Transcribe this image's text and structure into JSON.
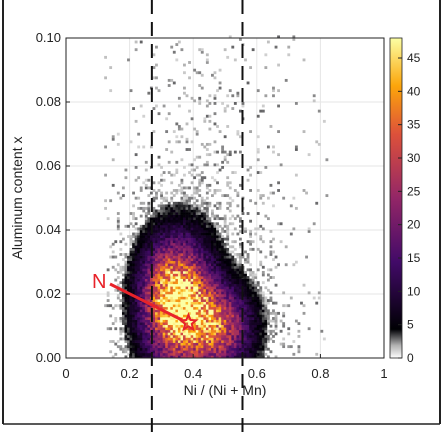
{
  "chart_data": {
    "type": "heatmap",
    "xlabel": "Ni / (Ni + Mn)",
    "ylabel": "Aluminum content x",
    "xlim": [
      0,
      1
    ],
    "ylim": [
      0,
      0.1
    ],
    "x_ticks": [
      0,
      0.2,
      0.4,
      0.6,
      0.8,
      1
    ],
    "x_tick_labels": [
      "0",
      "0.2",
      "0.4",
      "0.6",
      "0.8",
      "1"
    ],
    "y_ticks": [
      0,
      0.02,
      0.04,
      0.06,
      0.08,
      0.1
    ],
    "y_tick_labels": [
      "0.00",
      "0.02",
      "0.04",
      "0.06",
      "0.08",
      "0.10"
    ],
    "colorbar": {
      "min": 0,
      "max": 48,
      "ticks": [
        0,
        5,
        10,
        15,
        20,
        25,
        30,
        35,
        40,
        45
      ],
      "tick_labels": [
        "0",
        "5",
        "10",
        "15",
        "20",
        "25",
        "30",
        "35",
        "40",
        "45"
      ],
      "colormap": "inferno-like (light gray low → black → purple → orange → yellow high)"
    },
    "density_clusters": [
      {
        "center_x": 0.34,
        "center_y": 0.018,
        "spread_x": 0.07,
        "spread_y": 0.012,
        "peak": 48
      },
      {
        "center_x": 0.47,
        "center_y": 0.01,
        "spread_x": 0.07,
        "spread_y": 0.008,
        "peak": 28
      }
    ],
    "grid": true,
    "dashed_vertical_lines_x": [
      0.27,
      0.555
    ],
    "annotation": {
      "text": "N",
      "marker": "star",
      "marker_x": 0.385,
      "marker_y": 0.011,
      "color": "#e8232a"
    }
  }
}
